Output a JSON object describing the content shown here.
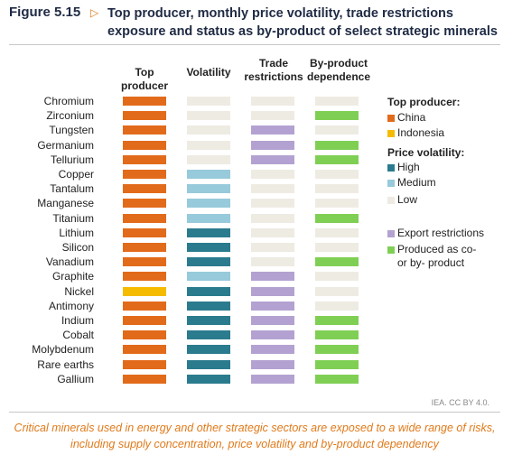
{
  "figure": {
    "number": "Figure 5.15",
    "arrow": "▷",
    "title": "Top producer, monthly price volatility, trade restrictions exposure and status as by-product of select strategic minerals",
    "source": "IEA. CC BY 4.0.",
    "caption": "Critical minerals used in energy and other strategic sectors are exposed to a wide range of risks, including supply concentration, price volatility and by-product dependency"
  },
  "colors": {
    "china": "#e26b1b",
    "indonesia": "#f5bb00",
    "high": "#2b7b8e",
    "medium": "#97cadb",
    "low": "#eeebe3",
    "export": "#b3a2d1",
    "byproduct": "#80cf55"
  },
  "chart_data": {
    "type": "table",
    "columns": [
      "Top producer",
      "Volatility",
      "Trade restrictions",
      "By-product dependence"
    ],
    "rows": [
      {
        "mineral": "Chromium",
        "top_producer": "China",
        "volatility": "Low",
        "trade": "none",
        "byproduct": "none"
      },
      {
        "mineral": "Zirconium",
        "top_producer": "China",
        "volatility": "Low",
        "trade": "none",
        "byproduct": "yes"
      },
      {
        "mineral": "Tungsten",
        "top_producer": "China",
        "volatility": "Low",
        "trade": "export",
        "byproduct": "none"
      },
      {
        "mineral": "Germanium",
        "top_producer": "China",
        "volatility": "Low",
        "trade": "export",
        "byproduct": "yes"
      },
      {
        "mineral": "Tellurium",
        "top_producer": "China",
        "volatility": "Low",
        "trade": "export",
        "byproduct": "yes"
      },
      {
        "mineral": "Copper",
        "top_producer": "China",
        "volatility": "Medium",
        "trade": "none",
        "byproduct": "none"
      },
      {
        "mineral": "Tantalum",
        "top_producer": "China",
        "volatility": "Medium",
        "trade": "none",
        "byproduct": "none"
      },
      {
        "mineral": "Manganese",
        "top_producer": "China",
        "volatility": "Medium",
        "trade": "none",
        "byproduct": "none"
      },
      {
        "mineral": "Titanium",
        "top_producer": "China",
        "volatility": "Medium",
        "trade": "none",
        "byproduct": "yes"
      },
      {
        "mineral": "Lithium",
        "top_producer": "China",
        "volatility": "High",
        "trade": "none",
        "byproduct": "none"
      },
      {
        "mineral": "Silicon",
        "top_producer": "China",
        "volatility": "High",
        "trade": "none",
        "byproduct": "none"
      },
      {
        "mineral": "Vanadium",
        "top_producer": "China",
        "volatility": "High",
        "trade": "none",
        "byproduct": "yes"
      },
      {
        "mineral": "Graphite",
        "top_producer": "China",
        "volatility": "Medium",
        "trade": "export",
        "byproduct": "none"
      },
      {
        "mineral": "Nickel",
        "top_producer": "Indonesia",
        "volatility": "High",
        "trade": "export",
        "byproduct": "none"
      },
      {
        "mineral": "Antimony",
        "top_producer": "China",
        "volatility": "High",
        "trade": "export",
        "byproduct": "none"
      },
      {
        "mineral": "Indium",
        "top_producer": "China",
        "volatility": "High",
        "trade": "export",
        "byproduct": "yes"
      },
      {
        "mineral": "Cobalt",
        "top_producer": "China",
        "volatility": "High",
        "trade": "export",
        "byproduct": "yes"
      },
      {
        "mineral": "Molybdenum",
        "top_producer": "China",
        "volatility": "High",
        "trade": "export",
        "byproduct": "yes"
      },
      {
        "mineral": "Rare earths",
        "top_producer": "China",
        "volatility": "High",
        "trade": "export",
        "byproduct": "yes"
      },
      {
        "mineral": "Gallium",
        "top_producer": "China",
        "volatility": "High",
        "trade": "export",
        "byproduct": "yes"
      }
    ]
  },
  "headers": {
    "top_producer_1": "Top",
    "top_producer_2": "producer",
    "volatility": "Volatility",
    "trade_1": "Trade",
    "trade_2": "restrictions",
    "byproduct_1": "By-product",
    "byproduct_2": "dependence"
  },
  "legend": {
    "top_producer_title": "Top producer:",
    "china": "China",
    "indonesia": "Indonesia",
    "volatility_title": "Price volatility:",
    "high": "High",
    "medium": "Medium",
    "low": "Low",
    "export": "Export restrictions",
    "byproduct_1": "Produced as co-",
    "byproduct_2": "or by- product"
  }
}
